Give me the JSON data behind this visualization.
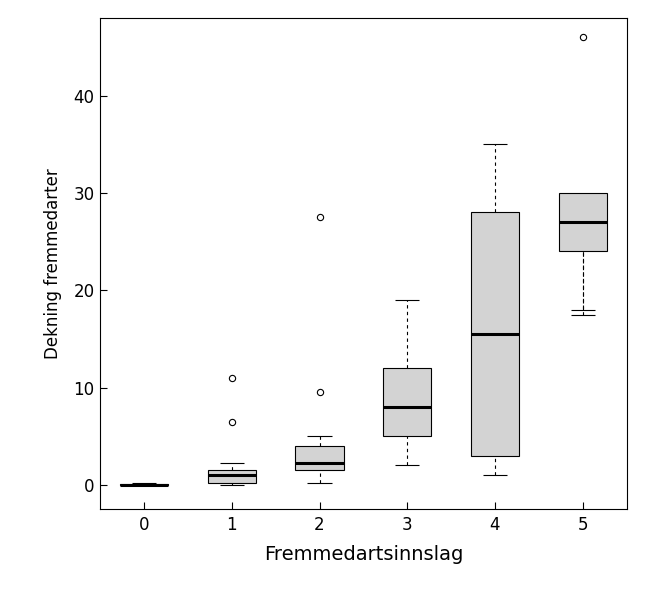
{
  "title": "",
  "xlabel": "Fremmedartsinnslag",
  "ylabel": "Dekning fremmedarter",
  "xlim": [
    -0.5,
    5.5
  ],
  "ylim": [
    -2.5,
    48
  ],
  "yticks": [
    0,
    10,
    20,
    30,
    40
  ],
  "xticks": [
    0,
    1,
    2,
    3,
    4,
    5
  ],
  "box_width": 0.55,
  "background_color": "#ffffff",
  "box_facecolor": "#d3d3d3",
  "box_edgecolor": "#000000",
  "median_color": "#000000",
  "whisker_color": "#000000",
  "flier_color": "#000000",
  "groups": [
    {
      "x": 0,
      "q1": 0.0,
      "median": 0.0,
      "q3": 0.05,
      "whisker_low": 0.0,
      "whisker_high": 0.15,
      "outliers": []
    },
    {
      "x": 1,
      "q1": 0.15,
      "median": 1.0,
      "q3": 1.5,
      "whisker_low": 0.0,
      "whisker_high": 2.2,
      "outliers": [
        6.5,
        11.0
      ]
    },
    {
      "x": 2,
      "q1": 1.5,
      "median": 2.2,
      "q3": 4.0,
      "whisker_low": 0.2,
      "whisker_high": 5.0,
      "outliers": [
        9.5,
        27.5
      ]
    },
    {
      "x": 3,
      "q1": 5.0,
      "median": 8.0,
      "q3": 12.0,
      "whisker_low": 2.0,
      "whisker_high": 19.0,
      "outliers": []
    },
    {
      "x": 4,
      "q1": 3.0,
      "median": 15.5,
      "q3": 28.0,
      "whisker_low": 1.0,
      "whisker_high": 35.0,
      "outliers": []
    },
    {
      "x": 5,
      "q1": 24.0,
      "median": 27.0,
      "q3": 30.0,
      "whisker_low": 17.5,
      "whisker_high": 18.0,
      "outliers": [
        46.0
      ]
    }
  ]
}
